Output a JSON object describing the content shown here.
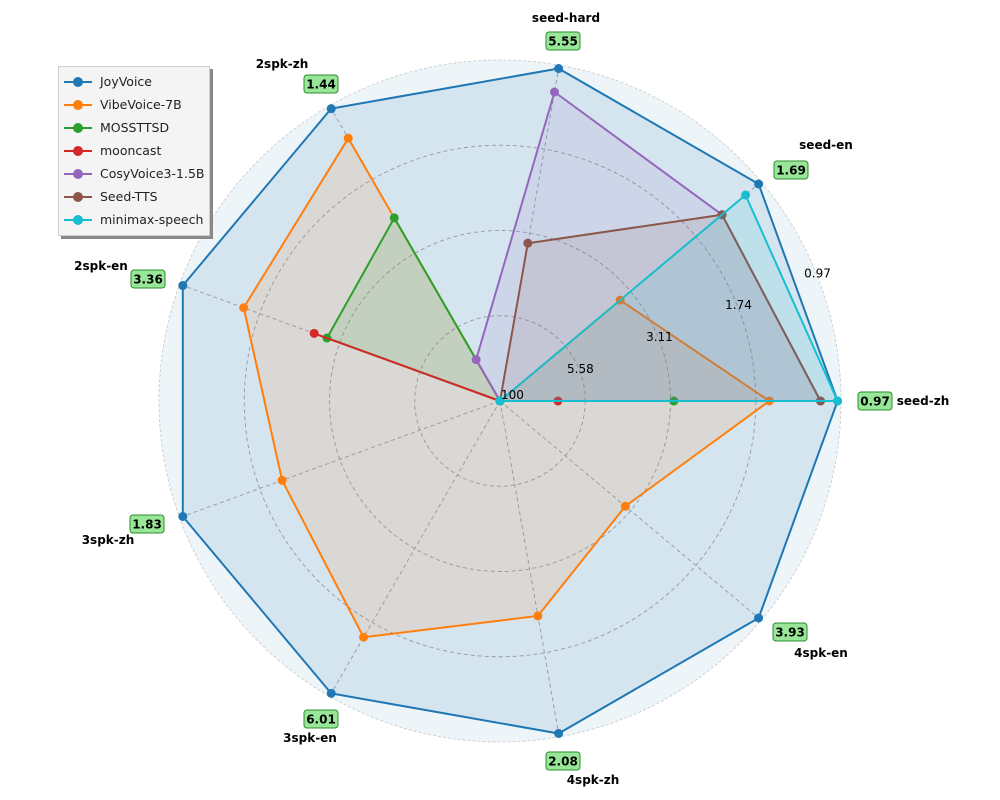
{
  "chart_data": {
    "type": "radar",
    "title": "",
    "axes": [
      "seed-zh",
      "seed-en",
      "seed-hard",
      "2spk-zh",
      "2spk-en",
      "3spk-zh",
      "3spk-en",
      "4spk-zh",
      "4spk-en"
    ],
    "best_values": [
      "0.97",
      "1.69",
      "5.55",
      "1.44",
      "3.36",
      "1.83",
      "6.01",
      "2.08",
      "3.93"
    ],
    "radial_ticks": [
      {
        "r": 0.0,
        "label": "100"
      },
      {
        "r": 0.25,
        "label": "5.58"
      },
      {
        "r": 0.5,
        "label": "3.11"
      },
      {
        "r": 0.75,
        "label": "1.74"
      },
      {
        "r": 1.0,
        "label": "0.97"
      }
    ],
    "rlim": [
      0,
      1
    ],
    "grid": true,
    "legend_position": "upper left",
    "series": [
      {
        "name": "JoyVoice",
        "color": "#1f77b4",
        "values": [
          0.99,
          0.99,
          0.99,
          0.99,
          0.99,
          0.99,
          0.99,
          0.99,
          0.99
        ]
      },
      {
        "name": "VibeVoice-7B",
        "color": "#ff7f0e",
        "values": [
          0.79,
          0.46,
          0.0,
          0.89,
          0.8,
          0.68,
          0.8,
          0.64,
          0.48
        ]
      },
      {
        "name": "MOSSTTSD",
        "color": "#2ca02c",
        "values": [
          0.51,
          0.0,
          0.0,
          0.62,
          0.54,
          0.0,
          0.0,
          0.0,
          0.0
        ]
      },
      {
        "name": "mooncast",
        "color": "#d62728",
        "values": [
          0.17,
          0.0,
          0.0,
          0.0,
          0.58,
          0.0,
          0.0,
          0.0,
          0.0
        ]
      },
      {
        "name": "CosyVoice3-1.5B",
        "color": "#9467bd",
        "values": [
          0.94,
          0.85,
          0.92,
          0.14,
          0.0,
          0.0,
          0.0,
          0.0,
          0.0
        ]
      },
      {
        "name": "Seed-TTS",
        "color": "#8c564b",
        "values": [
          0.94,
          0.85,
          0.47,
          0.0,
          0.0,
          0.0,
          0.0,
          0.0,
          0.0
        ]
      },
      {
        "name": "minimax-speech",
        "color": "#17becf",
        "values": [
          0.99,
          0.94,
          0.0,
          0.0,
          0.0,
          0.0,
          0.0,
          0.0,
          0.0
        ]
      }
    ]
  },
  "legend": {
    "items": [
      {
        "label": "JoyVoice",
        "color": "#1f77b4"
      },
      {
        "label": "VibeVoice-7B",
        "color": "#ff7f0e"
      },
      {
        "label": "MOSSTTSD",
        "color": "#2ca02c"
      },
      {
        "label": "mooncast",
        "color": "#d62728"
      },
      {
        "label": "CosyVoice3-1.5B",
        "color": "#9467bd"
      },
      {
        "label": "Seed-TTS",
        "color": "#8c564b"
      },
      {
        "label": "minimax-speech",
        "color": "#17becf"
      }
    ]
  },
  "colors": {
    "value_box_fill": "#98e698",
    "value_box_border": "#2e8b2e",
    "polar_background": "#eef5f9",
    "grid": "#a0a0a0"
  }
}
